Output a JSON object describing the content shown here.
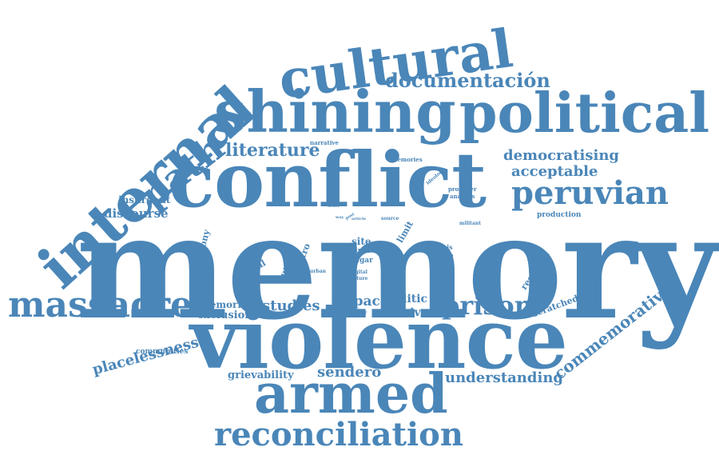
{
  "color": "#4a86b8",
  "words": [
    {
      "key": "memory",
      "text": "memory"
    },
    {
      "key": "violence",
      "text": "violence"
    },
    {
      "key": "conflict",
      "text": "conflict"
    },
    {
      "key": "shining",
      "text": "shining"
    },
    {
      "key": "political",
      "text": "political"
    },
    {
      "key": "cultural",
      "text": "cultural"
    },
    {
      "key": "internal",
      "text": "internal"
    },
    {
      "key": "armed",
      "text": "armed"
    },
    {
      "key": "reconciliation",
      "text": "reconciliation"
    },
    {
      "key": "massacre",
      "text": "massacre"
    },
    {
      "key": "peruvian",
      "text": "peruvian"
    },
    {
      "key": "path",
      "text": "path"
    },
    {
      "key": "prison",
      "text": "prison"
    },
    {
      "key": "documentacion",
      "text": "documentación"
    },
    {
      "key": "literature",
      "text": "literature"
    },
    {
      "key": "commemorative",
      "text": "commemorative"
    },
    {
      "key": "placelessness",
      "text": "placelessness"
    },
    {
      "key": "understanding",
      "text": "understanding"
    },
    {
      "key": "democratising",
      "text": "democratising"
    },
    {
      "key": "acceptable",
      "text": "acceptable"
    },
    {
      "key": "studies",
      "text": "studies"
    },
    {
      "key": "sendero",
      "text": "sendero"
    },
    {
      "key": "discourse",
      "text": "discourse"
    },
    {
      "key": "space",
      "text": "space"
    },
    {
      "key": "politic",
      "text": "politic"
    },
    {
      "key": "archive",
      "text": "archive"
    },
    {
      "key": "grievability",
      "text": "grievability"
    },
    {
      "key": "exclusion",
      "text": "exclusion"
    },
    {
      "key": "memoria",
      "text": "memoria"
    },
    {
      "key": "insurgent",
      "text": "insurgent"
    },
    {
      "key": "testimony",
      "text": "testimony"
    },
    {
      "key": "social",
      "text": "social"
    },
    {
      "key": "truth",
      "text": "truth"
    },
    {
      "key": "centro",
      "text": "centro"
    },
    {
      "key": "site",
      "text": "site"
    },
    {
      "key": "lima",
      "text": "lima"
    },
    {
      "key": "lugar",
      "text": "lugar"
    },
    {
      "key": "limit",
      "text": "limit"
    },
    {
      "key": "response",
      "text": "response"
    },
    {
      "key": "scratched",
      "text": "scratched"
    },
    {
      "key": "state",
      "text": "state"
    },
    {
      "key": "thesis",
      "text": "thesis"
    },
    {
      "key": "fronton",
      "text": "frontón"
    },
    {
      "key": "literary",
      "text": "literary"
    },
    {
      "key": "communities",
      "text": "communities"
    },
    {
      "key": "production",
      "text": "production"
    },
    {
      "key": "narrative",
      "text": "narrative"
    },
    {
      "key": "memories",
      "text": "memories"
    },
    {
      "key": "ideology",
      "text": "ideology"
    },
    {
      "key": "producer",
      "text": "producer"
    },
    {
      "key": "analysis",
      "text": "analysis"
    },
    {
      "key": "militant",
      "text": "militant"
    },
    {
      "key": "source",
      "text": "source"
    },
    {
      "key": "urban",
      "text": "urban"
    },
    {
      "key": "digital",
      "text": "digital"
    },
    {
      "key": "nature",
      "text": "nature"
    },
    {
      "key": "broader",
      "text": "broader"
    },
    {
      "key": "article",
      "text": "article"
    },
    {
      "key": "order",
      "text": "order"
    },
    {
      "key": "way",
      "text": "way"
    },
    {
      "key": "post",
      "text": "post"
    }
  ]
}
